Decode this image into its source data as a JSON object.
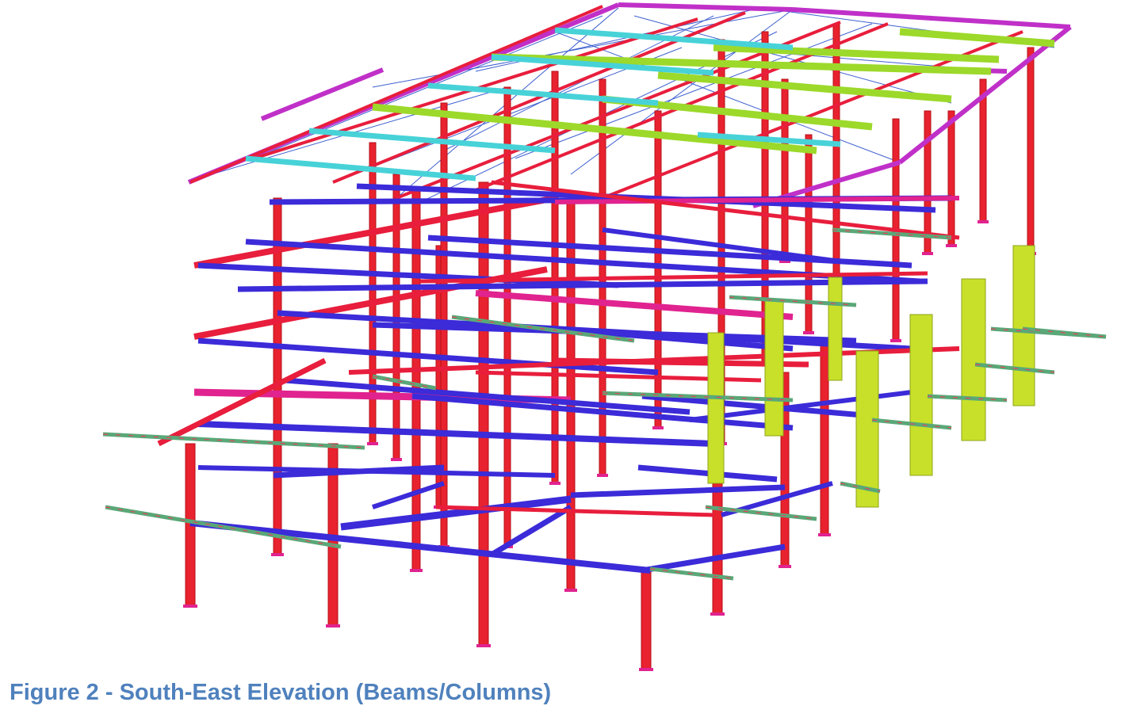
{
  "caption": "Figure 2 - South-East Elevation (Beams/Columns)",
  "colors": {
    "column": "#e8222e",
    "column_edge": "#b51018",
    "beam_red": "#e81e3c",
    "beam_blue": "#3b2bd8",
    "beam_pink": "#e0238f",
    "roof_magenta": "#c030c8",
    "beam_cyan": "#47d2d8",
    "beam_green": "#9cd92a",
    "tie_green": "#5aa878",
    "column_yellow": "#c8e02a",
    "brace_blue": "#3d5fd0"
  },
  "icons": [
    "3d-structural-frame"
  ]
}
